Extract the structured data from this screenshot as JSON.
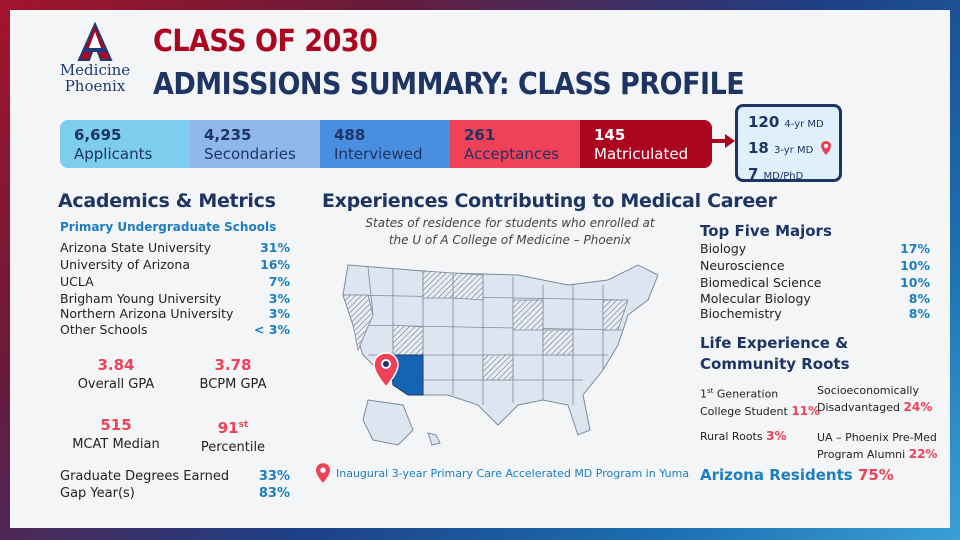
{
  "logo": {
    "line1": "Medicine",
    "line2": "Phoenix"
  },
  "header": {
    "title1": "CLASS OF 2030",
    "title2": "ADMISSIONS SUMMARY: CLASS PROFILE"
  },
  "funnel": [
    {
      "number": "6,695",
      "label": "Applicants"
    },
    {
      "number": "4,235",
      "label": "Secondaries"
    },
    {
      "number": "488",
      "label": "Interviewed"
    },
    {
      "number": "261",
      "label": "Acceptances"
    },
    {
      "number": "145",
      "label": "Matriculated"
    }
  ],
  "programs": [
    {
      "number": "120",
      "label": "4-yr MD"
    },
    {
      "number": "18",
      "label": "3-yr MD"
    },
    {
      "number": "7",
      "label": "MD/PhD"
    }
  ],
  "academics": {
    "heading": "Academics & Metrics",
    "schools_heading": "Primary Undergraduate Schools",
    "schools": [
      {
        "name": "Arizona State University",
        "pct": "31%"
      },
      {
        "name": "University of Arizona",
        "pct": "16%"
      },
      {
        "name": "UCLA",
        "pct": "7%"
      },
      {
        "name": "Brigham Young University",
        "pct": "3%"
      },
      {
        "name": "Northern Arizona University",
        "pct": "3%"
      },
      {
        "name": "Other Schools",
        "pct": "< 3%"
      }
    ],
    "gpa": {
      "value": "3.84",
      "label": "Overall GPA"
    },
    "bcpm": {
      "value": "3.78",
      "label": "BCPM GPA"
    },
    "mcat": {
      "value": "515",
      "label": "MCAT Median"
    },
    "percentile": {
      "value": "91",
      "suffix": "st",
      "label": "Percentile"
    },
    "grad_degrees": {
      "label": "Graduate Degrees Earned",
      "pct": "33%"
    },
    "gap_year": {
      "label": "Gap Year(s)",
      "pct": "83%"
    }
  },
  "experiences": {
    "heading": "Experiences Contributing to Medical Career",
    "map_caption_line1": "States of residence for students who enrolled at",
    "map_caption_line2": "the U of A College of Medicine – Phoenix",
    "pin_legend": "Inaugural 3-year Primary Care Accelerated MD Program in Yuma"
  },
  "majors": {
    "heading": "Top Five Majors",
    "items": [
      {
        "name": "Biology",
        "pct": "17%"
      },
      {
        "name": "Neuroscience",
        "pct": "10%"
      },
      {
        "name": "Biomedical Science",
        "pct": "10%"
      },
      {
        "name": "Molecular Biology",
        "pct": "8%"
      },
      {
        "name": "Biochemistry",
        "pct": "8%"
      }
    ]
  },
  "life": {
    "heading_line1": "Life Experience &",
    "heading_line2": "Community Roots",
    "first_gen_num": "1",
    "first_gen_sup": "st",
    "first_gen_label1": " Generation",
    "first_gen_label2": "College Student",
    "first_gen_pct": "11%",
    "socio_label1": "Socioeconomically",
    "socio_label2": "Disadvantaged",
    "socio_pct": "24%",
    "rural_label": "Rural Roots",
    "rural_pct": "3%",
    "premed_label1": "UA – Phoenix Pre-Med",
    "premed_label2": "Program Alumni",
    "premed_pct": "22%",
    "az_label": "Arizona Residents",
    "az_pct": "75%"
  },
  "colors": {
    "red": "#ab0520",
    "navy": "#1e3463",
    "blue": "#1c7dbf",
    "pink": "#ef4158"
  }
}
